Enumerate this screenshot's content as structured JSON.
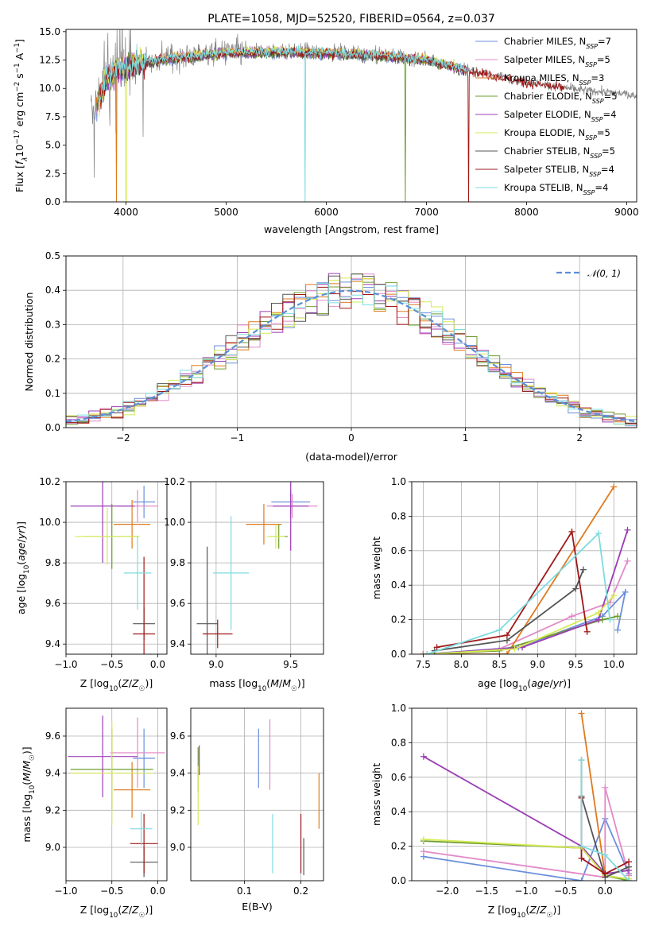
{
  "colors": {
    "Chabrier MILES": "#6a8fdc",
    "Salpeter MILES": "#e389c8",
    "Kroupa MILES": "#de7a1e",
    "Chabrier ELODIE": "#6e9e2f",
    "Salpeter ELODIE": "#9b3db5",
    "Kroupa ELODIE": "#d6ea55",
    "Chabrier STELIB": "#555555",
    "Salpeter STELIB": "#a01818",
    "Kroupa STELIB": "#7ddbdf",
    "data": "#808080"
  },
  "chart_data": [
    {
      "type": "line",
      "title": "PLATE=1058, MJD=52520, FIBERID=0564, z=0.037",
      "xlabel": "wavelength [Angstrom, rest frame]",
      "ylabel": "Flux [f_λ10^-17 erg cm^-2 s^-1 A^-1]",
      "xlim": [
        3400,
        9100
      ],
      "ylim": [
        0,
        15.2
      ],
      "xticks": [
        4000,
        5000,
        6000,
        7000,
        8000,
        9000
      ],
      "yticks": [
        0.0,
        2.5,
        5.0,
        7.5,
        10.0,
        12.5,
        15.0
      ],
      "legend_position": "upper-right",
      "legend": [
        {
          "model": "Chabrier MILES",
          "label": "Chabrier MILES, N",
          "nssp": "=7"
        },
        {
          "model": "Salpeter MILES",
          "label": "Salpeter MILES, N",
          "nssp": "=5"
        },
        {
          "model": "Kroupa MILES",
          "label": "Kroupa MILES, N",
          "nssp": "=3"
        },
        {
          "model": "Chabrier ELODIE",
          "label": "Chabrier ELODIE, N",
          "nssp": "=5"
        },
        {
          "model": "Salpeter ELODIE",
          "label": "Salpeter ELODIE, N",
          "nssp": "=4"
        },
        {
          "model": "Kroupa ELODIE",
          "label": "Kroupa ELODIE, N",
          "nssp": "=5"
        },
        {
          "model": "Chabrier STELIB",
          "label": "Chabrier STELIB, N",
          "nssp": "=5"
        },
        {
          "model": "Salpeter STELIB",
          "label": "Salpeter STELIB, N",
          "nssp": "=4"
        },
        {
          "model": "Kroupa STELIB",
          "label": "Kroupa STELIB, N",
          "nssp": "=4"
        }
      ],
      "ssp_subscript": "SSP",
      "spectrum_envelope": {
        "x": [
          3650,
          3700,
          3750,
          3800,
          3900,
          4000,
          4200,
          4500,
          5000,
          5500,
          6000,
          6500,
          7000,
          7500,
          8000,
          8500,
          9000,
          9100
        ],
        "y": [
          7.5,
          8.5,
          9.5,
          11.0,
          11.5,
          12.0,
          12.4,
          12.8,
          13.2,
          13.3,
          13.2,
          13.0,
          12.6,
          11.5,
          10.6,
          9.9,
          9.5,
          9.3
        ]
      }
    },
    {
      "type": "line",
      "xlabel": "(data-model)/error",
      "ylabel": "Normed distribution",
      "xlim": [
        -2.5,
        2.5
      ],
      "ylim": [
        0,
        0.5
      ],
      "xticks": [
        -2,
        -1,
        0,
        1,
        2
      ],
      "xtick_labels": [
        "−2",
        "−1",
        "0",
        "1",
        "2"
      ],
      "yticks": [
        0.0,
        0.1,
        0.2,
        0.3,
        0.4,
        0.5
      ],
      "legend": "𝒩(0, 1)",
      "legend_position": "upper-right",
      "bin_width": 0.1
    },
    {
      "type": "scatter",
      "xlabel": "Z [log10(Z/Z☉)]",
      "ylabel": "age [log10(age/yr)]",
      "xlim": [
        -1.0,
        0.1
      ],
      "ylim": [
        9.35,
        10.2
      ],
      "xticks": [
        -1.0,
        -0.5,
        0.0
      ],
      "xtick_labels": [
        "−1.0",
        "−0.5",
        "0.0"
      ],
      "yticks": [
        9.4,
        9.6,
        9.8,
        10.0,
        10.2
      ],
      "series": [
        {
          "name": "Chabrier MILES",
          "x": -0.15,
          "xerr": 0.12,
          "y": 10.1,
          "yerr": 0.08
        },
        {
          "name": "Salpeter MILES",
          "x": -0.22,
          "xerr": 0.22,
          "y": 10.08,
          "yerr": 0.08
        },
        {
          "name": "Kroupa MILES",
          "x": -0.28,
          "xerr": 0.2,
          "y": 9.99,
          "yerr": 0.12
        },
        {
          "name": "Chabrier ELODIE",
          "x": -0.5,
          "xerr": 0.3,
          "y": 9.93,
          "yerr": 0.16
        },
        {
          "name": "Salpeter ELODIE",
          "x": -0.6,
          "xerr": 0.35,
          "y": 10.08,
          "yerr": 0.28
        },
        {
          "name": "Kroupa ELODIE",
          "x": -0.55,
          "xerr": 0.35,
          "y": 9.93,
          "yerr": 0.14
        },
        {
          "name": "Chabrier STELIB",
          "x": -0.15,
          "xerr": 0.12,
          "y": 9.5,
          "yerr": 0.08
        },
        {
          "name": "Salpeter STELIB",
          "x": -0.15,
          "xerr": 0.12,
          "y": 9.45,
          "yerr": 0.38
        },
        {
          "name": "Kroupa STELIB",
          "x": -0.22,
          "xerr": 0.15,
          "y": 9.75,
          "yerr": 0.18
        }
      ]
    },
    {
      "type": "scatter",
      "xlabel": "mass [log10(M/M☉)]",
      "xlim": [
        8.83,
        9.72
      ],
      "ylim": [
        9.35,
        10.2
      ],
      "xticks": [
        9.0,
        9.5
      ],
      "yticks": [
        9.4,
        9.6,
        9.8,
        10.0,
        10.2
      ],
      "series": [
        {
          "name": "Chabrier MILES",
          "x": 9.5,
          "xerr": 0.13,
          "y": 10.1,
          "yerr": 0.06
        },
        {
          "name": "Salpeter MILES",
          "x": 9.51,
          "xerr": 0.17,
          "y": 10.08,
          "yerr": 0.06
        },
        {
          "name": "Kroupa MILES",
          "x": 9.32,
          "xerr": 0.12,
          "y": 9.99,
          "yerr": 0.1
        },
        {
          "name": "Chabrier ELODIE",
          "x": 9.42,
          "xerr": 0.06,
          "y": 9.93,
          "yerr": 0.06
        },
        {
          "name": "Salpeter ELODIE",
          "x": 9.5,
          "xerr": 0.12,
          "y": 10.08,
          "yerr": 0.22
        },
        {
          "name": "Kroupa ELODIE",
          "x": 9.4,
          "xerr": 0.06,
          "y": 9.93,
          "yerr": 0.06
        },
        {
          "name": "Chabrier STELIB",
          "x": 8.94,
          "xerr": 0.07,
          "y": 9.5,
          "yerr": 0.38
        },
        {
          "name": "Salpeter STELIB",
          "x": 9.01,
          "xerr": 0.1,
          "y": 9.45,
          "yerr": 0.07
        },
        {
          "name": "Kroupa STELIB",
          "x": 9.1,
          "xerr": 0.12,
          "y": 9.75,
          "yerr": 0.28
        }
      ]
    },
    {
      "type": "line",
      "xlabel": "age [log10(age/yr)]",
      "ylabel": "mass weight",
      "xlim": [
        7.35,
        10.3
      ],
      "ylim": [
        0,
        1.0
      ],
      "xticks": [
        7.5,
        8.0,
        8.5,
        9.0,
        9.5,
        10.0
      ],
      "yticks": [
        0.0,
        0.2,
        0.4,
        0.6,
        0.8,
        1.0
      ],
      "series": [
        {
          "name": "Chabrier MILES",
          "x": [
            7.5,
            8.75,
            9.85,
            10.15,
            10.05
          ],
          "y": [
            0.0,
            0.04,
            0.22,
            0.36,
            0.14
          ]
        },
        {
          "name": "Salpeter MILES",
          "x": [
            7.55,
            8.5,
            9.45,
            9.95,
            10.18
          ],
          "y": [
            0.0,
            0.03,
            0.22,
            0.3,
            0.54
          ]
        },
        {
          "name": "Kroupa MILES",
          "x": [
            7.5,
            8.6,
            10.0
          ],
          "y": [
            0.0,
            0.0,
            0.97
          ]
        },
        {
          "name": "Chabrier ELODIE",
          "x": [
            7.55,
            8.5,
            9.85,
            10.05
          ],
          "y": [
            0.0,
            0.02,
            0.2,
            0.22
          ]
        },
        {
          "name": "Salpeter ELODIE",
          "x": [
            7.55,
            8.8,
            9.8,
            10.18
          ],
          "y": [
            0.0,
            0.04,
            0.2,
            0.72
          ]
        },
        {
          "name": "Kroupa ELODIE",
          "x": [
            7.55,
            8.7,
            9.8,
            10.0
          ],
          "y": [
            0.0,
            0.03,
            0.24,
            0.34
          ]
        },
        {
          "name": "Chabrier STELIB",
          "x": [
            7.65,
            8.6,
            9.5,
            9.6
          ],
          "y": [
            0.02,
            0.08,
            0.38,
            0.49
          ]
        },
        {
          "name": "Salpeter STELIB",
          "x": [
            7.68,
            8.6,
            9.45,
            9.65
          ],
          "y": [
            0.04,
            0.11,
            0.71,
            0.13
          ]
        },
        {
          "name": "Kroupa STELIB",
          "x": [
            7.55,
            8.5,
            9.8,
            9.95
          ],
          "y": [
            0.0,
            0.14,
            0.7,
            0.2
          ]
        }
      ]
    },
    {
      "type": "scatter",
      "xlabel": "Z [log10(Z/Z☉)]",
      "ylabel": "mass [log10(M/M☉)]",
      "xlim": [
        -1.0,
        0.1
      ],
      "ylim": [
        8.82,
        9.75
      ],
      "xticks": [
        -1.0,
        -0.5,
        0.0
      ],
      "xtick_labels": [
        "−1.0",
        "−0.5",
        "0.0"
      ],
      "yticks": [
        9.0,
        9.2,
        9.4,
        9.6
      ],
      "series": [
        {
          "name": "Chabrier MILES",
          "x": -0.15,
          "xerr": 0.12,
          "y": 9.48,
          "yerr": 0.16
        },
        {
          "name": "Salpeter MILES",
          "x": -0.22,
          "xerr": 0.3,
          "y": 9.51,
          "yerr": 0.19
        },
        {
          "name": "Kroupa MILES",
          "x": -0.28,
          "xerr": 0.2,
          "y": 9.31,
          "yerr": 0.15
        },
        {
          "name": "Chabrier ELODIE",
          "x": -0.5,
          "xerr": 0.45,
          "y": 9.42,
          "yerr": 0.22
        },
        {
          "name": "Salpeter ELODIE",
          "x": -0.6,
          "xerr": 0.38,
          "y": 9.49,
          "yerr": 0.22
        },
        {
          "name": "Kroupa ELODIE",
          "x": -0.5,
          "xerr": 0.45,
          "y": 9.4,
          "yerr": 0.28
        },
        {
          "name": "Chabrier STELIB",
          "x": -0.15,
          "xerr": 0.15,
          "y": 8.92,
          "yerr": 0.08
        },
        {
          "name": "Salpeter STELIB",
          "x": -0.15,
          "xerr": 0.15,
          "y": 9.02,
          "yerr": 0.16
        },
        {
          "name": "Kroupa STELIB",
          "x": -0.18,
          "xerr": 0.12,
          "y": 9.1,
          "yerr": 0.09
        }
      ]
    },
    {
      "type": "scatter",
      "xlabel": "E(B-V)",
      "xlim": [
        0.005,
        0.24
      ],
      "ylim": [
        8.82,
        9.75
      ],
      "xticks": [
        0.1,
        0.2
      ],
      "yticks": [
        9.0,
        9.2,
        9.4,
        9.6
      ],
      "series": [
        {
          "name": "Chabrier MILES",
          "x": 0.125,
          "xerr": 0,
          "y": 9.48,
          "yerr": 0.16
        },
        {
          "name": "Salpeter MILES",
          "x": 0.145,
          "xerr": 0,
          "y": 9.5,
          "yerr": 0.19
        },
        {
          "name": "Kroupa MILES",
          "x": 0.232,
          "xerr": 0,
          "y": 9.25,
          "yerr": 0.15
        },
        {
          "name": "Chabrier ELODIE",
          "x": 0.018,
          "xerr": 0,
          "y": 9.42,
          "yerr": 0.12
        },
        {
          "name": "Salpeter ELODIE",
          "x": 0.02,
          "xerr": 0,
          "y": 9.47,
          "yerr": 0.08
        },
        {
          "name": "Kroupa ELODIE",
          "x": 0.018,
          "xerr": 0,
          "y": 9.28,
          "yerr": 0.16
        },
        {
          "name": "Chabrier STELIB",
          "x": 0.205,
          "xerr": 0,
          "y": 8.95,
          "yerr": 0.1
        },
        {
          "name": "Salpeter STELIB",
          "x": 0.2,
          "xerr": 0,
          "y": 9.02,
          "yerr": 0.16
        },
        {
          "name": "Kroupa STELIB",
          "x": 0.15,
          "xerr": 0,
          "y": 9.02,
          "yerr": 0.16
        }
      ]
    },
    {
      "type": "line",
      "xlabel": "Z [log10(Z/Z☉)]",
      "ylabel": "mass weight",
      "xlim": [
        -2.45,
        0.4
      ],
      "ylim": [
        0,
        1.0
      ],
      "xticks": [
        -2.0,
        -1.5,
        -1.0,
        -0.5,
        0.0
      ],
      "xtick_labels": [
        "−2.0",
        "−1.5",
        "−1.0",
        "−0.5",
        "0.0"
      ],
      "yticks": [
        0.0,
        0.2,
        0.4,
        0.6,
        0.8,
        1.0
      ],
      "series": [
        {
          "name": "Chabrier MILES",
          "x": [
            -2.3,
            -0.3,
            0.0,
            0.3
          ],
          "y": [
            0.14,
            0.0,
            0.36,
            0.04
          ]
        },
        {
          "name": "Salpeter MILES",
          "x": [
            -2.3,
            0.0,
            0.0,
            0.3
          ],
          "y": [
            0.17,
            0.02,
            0.54,
            0.03
          ]
        },
        {
          "name": "Kroupa MILES",
          "x": [
            -0.3,
            0.0,
            0.3
          ],
          "y": [
            0.97,
            0.03,
            0.01
          ]
        },
        {
          "name": "Chabrier ELODIE",
          "x": [
            -2.3,
            -0.3,
            0.0,
            0.3
          ],
          "y": [
            0.23,
            0.19,
            0.03,
            0.0
          ]
        },
        {
          "name": "Salpeter ELODIE",
          "x": [
            -2.3,
            -0.3,
            0.0,
            0.3
          ],
          "y": [
            0.72,
            0.2,
            0.04,
            0.06
          ]
        },
        {
          "name": "Kroupa ELODIE",
          "x": [
            -2.3,
            -0.3,
            0.0,
            0.3
          ],
          "y": [
            0.24,
            0.19,
            0.03,
            0.01
          ]
        },
        {
          "name": "Chabrier STELIB",
          "x": [
            -0.3,
            -0.3,
            0.0,
            0.3
          ],
          "y": [
            0.7,
            0.49,
            0.02,
            0.08
          ]
        },
        {
          "name": "Salpeter STELIB",
          "x": [
            -0.3,
            -0.3,
            0.0,
            0.3
          ],
          "y": [
            0.48,
            0.13,
            0.04,
            0.11
          ]
        },
        {
          "name": "Kroupa STELIB",
          "x": [
            -0.3,
            -0.3,
            0.0,
            0.3
          ],
          "y": [
            0.7,
            0.2,
            0.15,
            0.0
          ]
        }
      ]
    }
  ]
}
